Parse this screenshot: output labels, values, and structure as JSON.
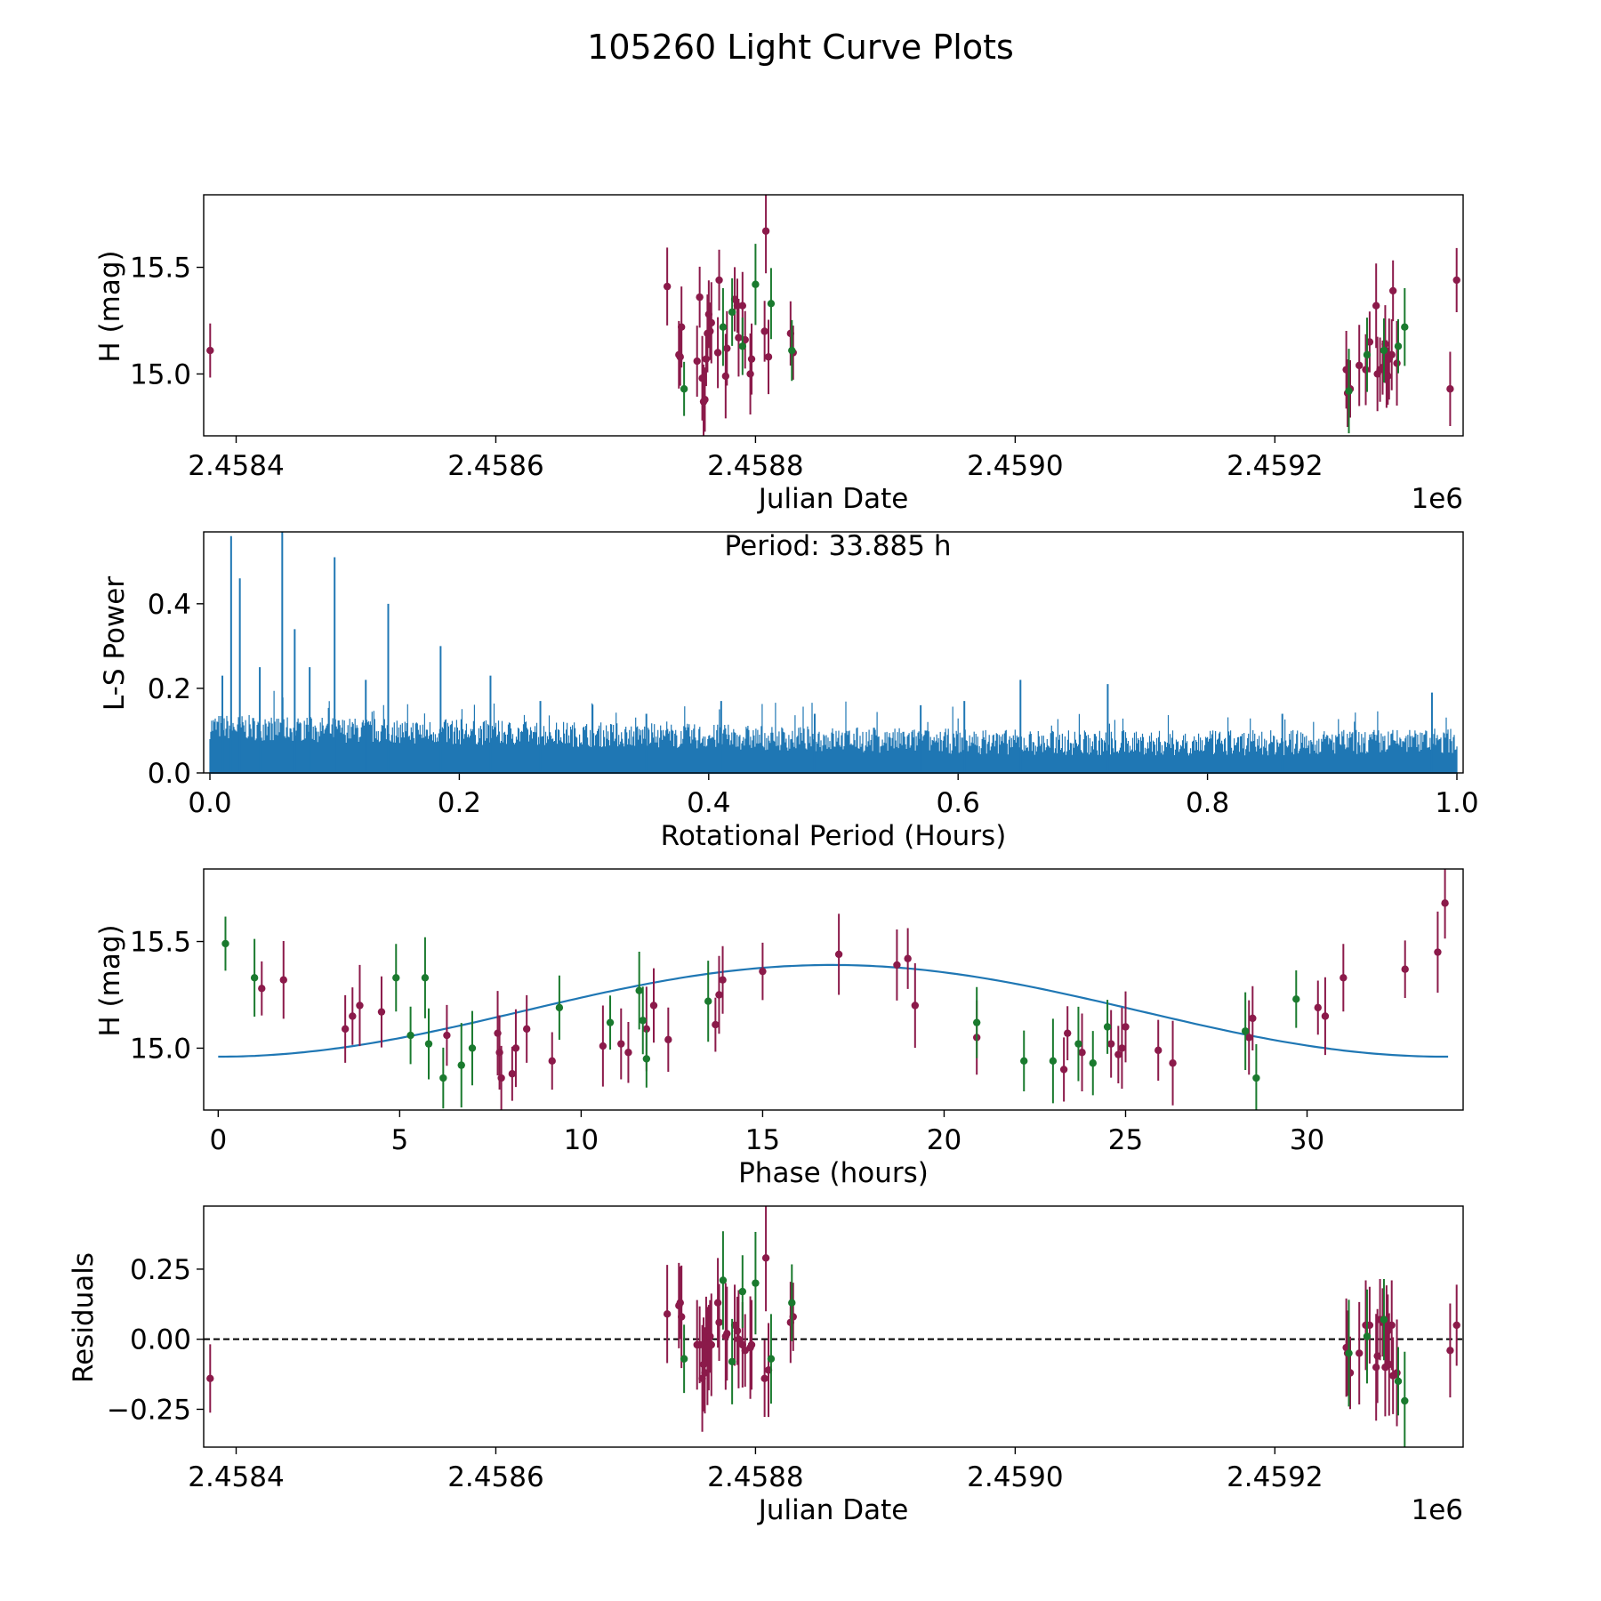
{
  "figure": {
    "title": "105260 Light Curve Plots",
    "colors": {
      "maroon": "#8b1a4a",
      "green": "#1a7a2e",
      "fit": "#1f77b4",
      "periodogram": "#1f77b4"
    }
  },
  "chart_data": [
    {
      "id": "lightcurve",
      "type": "scatter",
      "title": "",
      "xlabel": "Julian Date",
      "ylabel": "H (mag)",
      "x_offset_label": "1e6",
      "xlim": [
        2458375,
        2459345
      ],
      "ylim": [
        14.71,
        15.84
      ],
      "x_ticks": [
        2458400,
        2458600,
        2458800,
        2459000,
        2459200
      ],
      "x_tick_labels": [
        "2.4584",
        "2.4586",
        "2.4588",
        "2.4590",
        "2.4592"
      ],
      "y_ticks": [
        15.0,
        15.5
      ],
      "y_tick_labels": [
        "15.0",
        "15.5"
      ],
      "series": [
        {
          "name": "maroon",
          "color": "#8b1a4a",
          "x": [
            2458380,
            2458732,
            2458741,
            2458742,
            2458743,
            2458755,
            2458757,
            2458759,
            2458760,
            2458761,
            2458762,
            2458763,
            2458764,
            2458765,
            2458766,
            2458771,
            2458772,
            2458777,
            2458778,
            2458784,
            2458786,
            2458787,
            2458790,
            2458792,
            2458796,
            2458797,
            2458807,
            2458808,
            2458810,
            2458827,
            2458829,
            2459255,
            2459256,
            2459258,
            2459265,
            2459270,
            2459273,
            2459278,
            2459279,
            2459281,
            2459283,
            2459285,
            2459286,
            2459287,
            2459288,
            2459290,
            2459291,
            2459294,
            2459335,
            2459340
          ],
          "y": [
            15.11,
            15.41,
            15.09,
            15.08,
            15.22,
            15.06,
            15.36,
            14.98,
            14.87,
            14.88,
            15.07,
            15.19,
            15.28,
            15.2,
            15.24,
            15.1,
            15.44,
            14.99,
            15.12,
            15.35,
            15.32,
            15.17,
            15.32,
            15.16,
            15.0,
            15.07,
            15.2,
            15.67,
            15.08,
            15.19,
            15.1,
            15.02,
            14.91,
            14.93,
            15.04,
            15.02,
            15.15,
            15.32,
            15.0,
            15.02,
            15.03,
            15.14,
            15.0,
            14.99,
            15.07,
            15.09,
            15.39,
            15.05,
            14.93,
            15.44
          ]
        },
        {
          "name": "green",
          "color": "#1a7a2e",
          "x": [
            2458745,
            2458775,
            2458782,
            2458790,
            2458800,
            2458812,
            2458828,
            2459257,
            2459271,
            2459284,
            2459295,
            2459300
          ],
          "y": [
            14.93,
            15.22,
            15.29,
            15.13,
            15.42,
            15.33,
            15.11,
            14.92,
            15.09,
            15.11,
            15.13,
            15.22
          ]
        }
      ]
    },
    {
      "id": "periodogram",
      "type": "line",
      "title": "",
      "xlabel": "Rotational Period (Hours)",
      "ylabel": "L-S Power",
      "annotation": "Period: 33.885 h",
      "xlim": [
        -0.005,
        1.005
      ],
      "ylim": [
        0.0,
        0.57
      ],
      "x_ticks": [
        0.0,
        0.2,
        0.4,
        0.6,
        0.8,
        1.0
      ],
      "x_tick_labels": [
        "0.0",
        "0.2",
        "0.4",
        "0.6",
        "0.8",
        "1.0"
      ],
      "y_ticks": [
        0.0,
        0.2,
        0.4
      ],
      "y_tick_labels": [
        "0.0",
        "0.2",
        "0.4"
      ],
      "peaks": {
        "x": [
          0.017,
          0.024,
          0.058,
          0.068,
          0.1,
          0.143,
          0.185,
          0.225,
          0.01,
          0.04,
          0.08,
          0.125,
          0.265,
          0.35,
          0.41,
          0.485,
          0.57,
          0.605,
          0.65,
          0.72,
          0.86,
          0.98
        ],
        "y": [
          0.56,
          0.46,
          0.57,
          0.34,
          0.51,
          0.4,
          0.3,
          0.23,
          0.23,
          0.25,
          0.25,
          0.22,
          0.17,
          0.14,
          0.17,
          0.14,
          0.16,
          0.17,
          0.22,
          0.21,
          0.14,
          0.19
        ]
      }
    },
    {
      "id": "phased",
      "type": "scatter",
      "title": "",
      "xlabel": "Phase (hours)",
      "ylabel": "H (mag)",
      "xlim": [
        -0.4,
        34.3
      ],
      "ylim": [
        14.71,
        15.84
      ],
      "x_ticks": [
        0,
        5,
        10,
        15,
        20,
        25,
        30
      ],
      "x_tick_labels": [
        "0",
        "5",
        "10",
        "15",
        "20",
        "25",
        "30"
      ],
      "y_ticks": [
        15.0,
        15.5
      ],
      "y_tick_labels": [
        "15.0",
        "15.5"
      ],
      "fit": {
        "mean": 15.175,
        "amplitude": 0.215,
        "peak_phase": 16.9,
        "period": 33.885
      },
      "series": [
        {
          "name": "maroon",
          "color": "#8b1a4a",
          "x": [
            1.2,
            1.8,
            3.5,
            3.7,
            3.9,
            4.5,
            6.3,
            7.7,
            7.75,
            7.8,
            8.1,
            8.2,
            8.5,
            9.2,
            10.6,
            11.1,
            11.3,
            11.8,
            12.0,
            12.4,
            13.7,
            13.8,
            13.9,
            15.0,
            17.1,
            18.7,
            19.0,
            19.2,
            20.9,
            23.3,
            23.4,
            23.8,
            24.6,
            24.8,
            24.9,
            25.0,
            25.9,
            26.3,
            28.4,
            28.5,
            30.3,
            30.5,
            31.0,
            32.7,
            33.6,
            33.8
          ],
          "y": [
            15.28,
            15.32,
            15.09,
            15.15,
            15.2,
            15.17,
            15.06,
            15.07,
            14.98,
            14.86,
            14.88,
            15.0,
            15.09,
            14.94,
            15.01,
            15.02,
            14.98,
            15.09,
            15.2,
            15.04,
            15.11,
            15.25,
            15.32,
            15.36,
            15.44,
            15.39,
            15.42,
            15.2,
            15.05,
            14.9,
            15.07,
            14.98,
            15.02,
            14.97,
            15.0,
            15.1,
            14.99,
            14.93,
            15.05,
            15.14,
            15.19,
            15.15,
            15.33,
            15.37,
            15.45,
            15.68
          ]
        },
        {
          "name": "green",
          "color": "#1a7a2e",
          "x": [
            0.2,
            1.0,
            4.9,
            5.3,
            5.7,
            5.8,
            6.2,
            6.7,
            7.0,
            9.4,
            10.8,
            11.6,
            11.7,
            11.8,
            13.5,
            20.9,
            22.2,
            23.0,
            23.7,
            24.1,
            24.5,
            28.3,
            28.6,
            29.7
          ],
          "y": [
            15.49,
            15.33,
            15.33,
            15.06,
            15.33,
            15.02,
            14.86,
            14.92,
            15.0,
            15.19,
            15.12,
            15.27,
            15.13,
            14.95,
            15.22,
            15.12,
            14.94,
            14.94,
            15.02,
            14.93,
            15.1,
            15.08,
            14.86,
            15.23
          ]
        }
      ]
    },
    {
      "id": "residuals",
      "type": "scatter",
      "title": "",
      "xlabel": "Julian Date",
      "ylabel": "Residuals",
      "x_offset_label": "1e6",
      "xlim": [
        2458375,
        2459345
      ],
      "ylim": [
        -0.385,
        0.475
      ],
      "x_ticks": [
        2458400,
        2458600,
        2458800,
        2459000,
        2459200
      ],
      "x_tick_labels": [
        "2.4584",
        "2.4586",
        "2.4588",
        "2.4590",
        "2.4592"
      ],
      "y_ticks": [
        -0.25,
        0.0,
        0.25
      ],
      "y_tick_labels": [
        "−0.25",
        "0.00",
        "0.25"
      ],
      "reference_line": 0.0,
      "series": [
        {
          "name": "maroon",
          "color": "#8b1a4a",
          "x": [
            2458380,
            2458732,
            2458741,
            2458742,
            2458743,
            2458755,
            2458757,
            2458759,
            2458760,
            2458761,
            2458762,
            2458763,
            2458764,
            2458765,
            2458766,
            2458771,
            2458772,
            2458777,
            2458778,
            2458784,
            2458786,
            2458787,
            2458790,
            2458792,
            2458796,
            2458797,
            2458807,
            2458808,
            2458810,
            2458827,
            2458829,
            2459255,
            2459256,
            2459258,
            2459265,
            2459270,
            2459273,
            2459278,
            2459279,
            2459281,
            2459283,
            2459285,
            2459286,
            2459287,
            2459288,
            2459290,
            2459291,
            2459294,
            2459335,
            2459340
          ],
          "y": [
            -0.14,
            0.09,
            0.12,
            0.13,
            0.08,
            -0.02,
            -0.02,
            -0.14,
            -0.09,
            -0.12,
            0.03,
            -0.06,
            -0.03,
            0.01,
            -0.02,
            0.13,
            0.06,
            0.01,
            0.02,
            0.05,
            0.03,
            0.0,
            -0.02,
            -0.04,
            -0.03,
            -0.02,
            -0.14,
            0.29,
            -0.11,
            0.06,
            0.08,
            -0.03,
            -0.05,
            -0.12,
            -0.05,
            0.05,
            0.05,
            -0.1,
            -0.06,
            0.07,
            0.06,
            -0.1,
            0.04,
            0.03,
            -0.09,
            0.05,
            -0.13,
            -0.12,
            -0.04,
            0.05
          ]
        },
        {
          "name": "green",
          "color": "#1a7a2e",
          "x": [
            2458745,
            2458775,
            2458782,
            2458790,
            2458800,
            2458812,
            2458828,
            2459257,
            2459271,
            2459284,
            2459295,
            2459300
          ],
          "y": [
            -0.07,
            0.21,
            -0.08,
            0.17,
            0.2,
            -0.07,
            0.13,
            -0.05,
            0.01,
            0.07,
            -0.15,
            -0.22
          ]
        }
      ]
    }
  ]
}
